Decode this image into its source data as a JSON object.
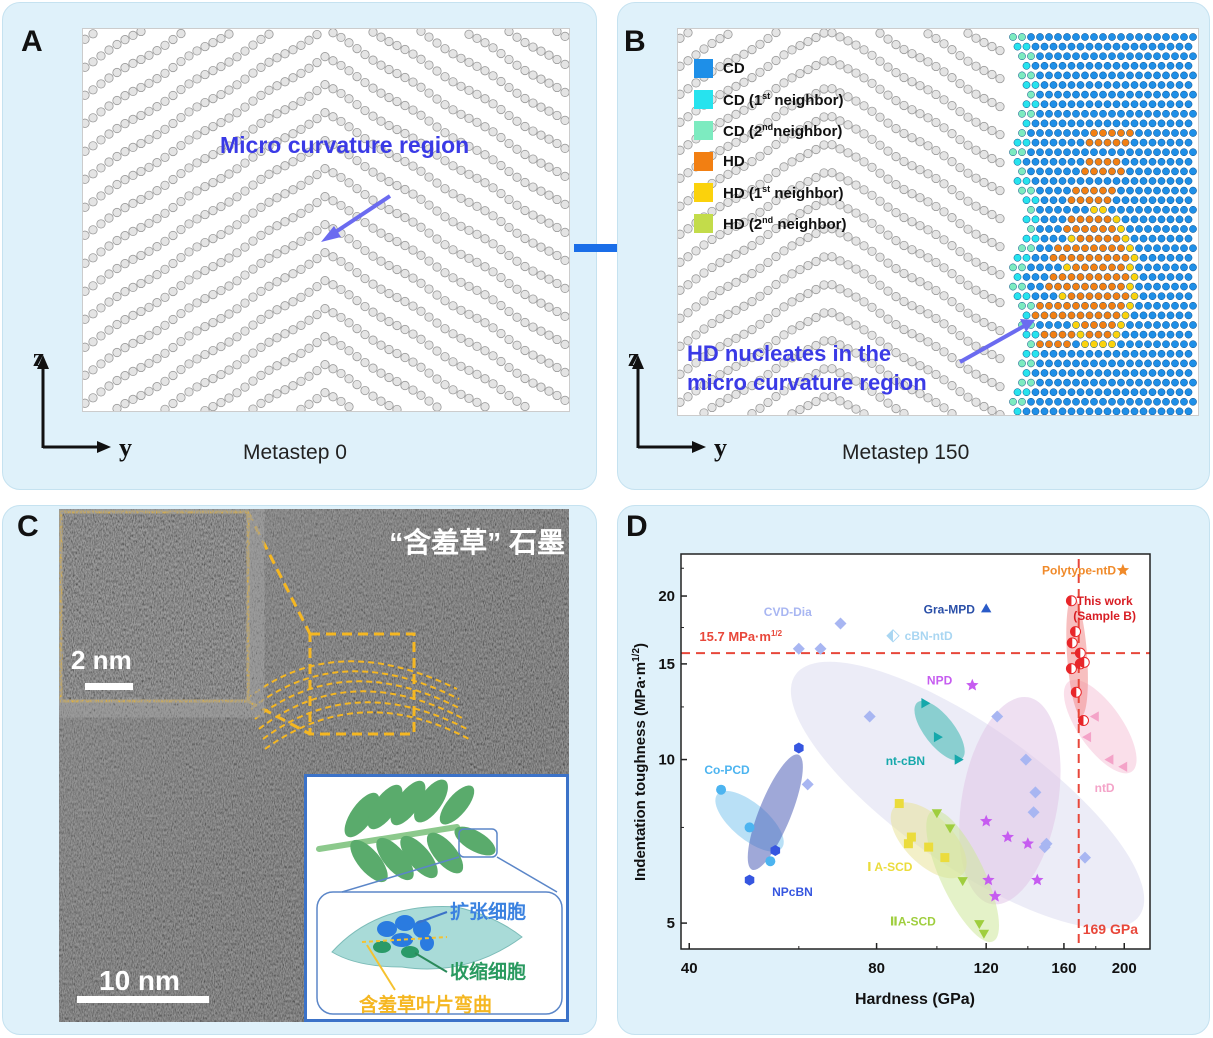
{
  "panel_a": {
    "label": "A",
    "annotation": "Micro curvature region",
    "axis_vertical": "z",
    "axis_horizontal": "y",
    "caption": "Metastep 0"
  },
  "panel_b": {
    "label": "B",
    "legend": [
      {
        "label": "CD",
        "sup": "",
        "suffix": "",
        "color": "#1e8fe8"
      },
      {
        "label": "CD (1",
        "sup": "st",
        "suffix": " neighbor)",
        "color": "#27e3ee"
      },
      {
        "label": "CD (2",
        "sup": "nd",
        "suffix": "neighbor)",
        "color": "#7debc0"
      },
      {
        "label": "HD",
        "sup": "",
        "suffix": "",
        "color": "#f27f12"
      },
      {
        "label": "HD (1",
        "sup": "st",
        "suffix": " neighbor)",
        "color": "#fbd20c"
      },
      {
        "label": "HD (2",
        "sup": "nd",
        "suffix": " neighbor)",
        "color": "#c3dc4a"
      }
    ],
    "annotation_line1": "HD nucleates in the",
    "annotation_line2": "micro curvature region",
    "axis_vertical": "z",
    "axis_horizontal": "y",
    "caption": "Metastep 150"
  },
  "panel_c": {
    "label": "C",
    "title": "“含羞草” 石墨",
    "inset_scale": "2 nm",
    "main_scale": "10 nm",
    "diagram": {
      "expanding_cells": "扩张细胞",
      "contracting_cells": "收缩细胞",
      "leaf_bending": "含羞草叶片弯曲"
    }
  },
  "panel_d": {
    "label": "D"
  },
  "chart_data": {
    "type": "scatter",
    "xlabel": "Hardness (GPa)",
    "ylabel": "Indentation toughness (MPa·m",
    "ylabel_sup": "1/2",
    "ylabel_end": ")",
    "x_scale": "log",
    "y_scale": "log",
    "xlim": [
      38.8,
      220
    ],
    "ylim": [
      4.48,
      23.9
    ],
    "x_ticks": [
      40,
      80,
      120,
      160,
      200
    ],
    "y_ticks": [
      5,
      10,
      15,
      20
    ],
    "grid": false,
    "reference_lines": [
      {
        "axis": "y",
        "value": 15.7,
        "label": "15.7 MPa·m",
        "label_sup": "1/2",
        "color": "#e8473a"
      },
      {
        "axis": "x",
        "value": 169,
        "label": "169 GPa",
        "color": "#e8473a"
      }
    ],
    "series": [
      {
        "name": "CVD-Dia",
        "marker": "diamond",
        "color": "#a8b6f2",
        "points": [
          [
            60,
            16.0
          ],
          [
            65,
            16.0
          ],
          [
            70,
            17.8
          ],
          [
            78,
            12.0
          ],
          [
            62,
            9.0
          ],
          [
            125,
            12.0
          ],
          [
            139,
            10.0
          ],
          [
            144,
            8.7
          ],
          [
            143,
            8.0
          ],
          [
            149,
            6.9
          ],
          [
            150,
            7.0
          ],
          [
            173,
            6.6
          ]
        ]
      },
      {
        "name": "Co-PCD",
        "marker": "circle",
        "color": "#4cb4f0",
        "points": [
          [
            45,
            8.8
          ],
          [
            50,
            7.5
          ],
          [
            54,
            6.5
          ]
        ]
      },
      {
        "name": "NPcBN",
        "marker": "hexagon",
        "color": "#3656e0",
        "points": [
          [
            60,
            10.5
          ],
          [
            55,
            6.8
          ],
          [
            50,
            6.0
          ]
        ]
      },
      {
        "name": "nt-cBN",
        "marker": "triangle-right",
        "color": "#16a8ab",
        "points": [
          [
            95.5,
            12.7
          ],
          [
            100,
            11.0
          ],
          [
            108,
            10.0
          ]
        ]
      },
      {
        "name": "NPD",
        "marker": "star",
        "color": "#c65cf0",
        "points": [
          [
            114,
            13.7
          ],
          [
            120,
            7.7
          ],
          [
            130,
            7.2
          ],
          [
            140,
            7.0
          ],
          [
            121,
            6.0
          ],
          [
            124,
            5.6
          ],
          [
            145,
            6.0
          ]
        ]
      },
      {
        "name": "Ⅰ A-SCD",
        "marker": "square",
        "color": "#ebdc3c",
        "points": [
          [
            87,
            8.3
          ],
          [
            91,
            7.2
          ],
          [
            90,
            7.0
          ],
          [
            97,
            6.9
          ],
          [
            103,
            6.6
          ]
        ]
      },
      {
        "name": "ⅡA-SCD",
        "marker": "triangle-down",
        "color": "#9fce3e",
        "points": [
          [
            100,
            8.0
          ],
          [
            105,
            7.5
          ],
          [
            110,
            6.0
          ],
          [
            117,
            5.0
          ],
          [
            119,
            4.8
          ]
        ]
      },
      {
        "name": "ntD",
        "marker": "triangle-left",
        "color": "#f4a3c8",
        "points": [
          [
            180,
            12.0
          ],
          [
            175,
            11.0
          ],
          [
            190,
            10.0
          ],
          [
            200,
            9.7
          ]
        ]
      },
      {
        "name": "This work",
        "name_line2": "(Sample B)",
        "marker": "half-circle",
        "color": "#e8262a",
        "points": [
          [
            164.5,
            19.6
          ],
          [
            167,
            17.2
          ],
          [
            165,
            16.4
          ],
          [
            170,
            15.7
          ],
          [
            164.5,
            14.7
          ],
          [
            170,
            15.0
          ],
          [
            172.5,
            15.1
          ],
          [
            167.5,
            13.3
          ],
          [
            172,
            11.8
          ]
        ]
      },
      {
        "name": "Gra-MPD",
        "marker": "triangle-up",
        "color": "#2a5bc8",
        "points": [
          [
            120,
            18.9
          ]
        ]
      },
      {
        "name": "cBN-ntD",
        "marker": "half-diamond",
        "color": "#a9d6f2",
        "points": [
          [
            85,
            16.9
          ]
        ]
      },
      {
        "name": "Polytype-ntD",
        "marker": "star",
        "color": "#f08a2a",
        "points": [
          [
            199,
            22.3
          ]
        ]
      }
    ]
  }
}
